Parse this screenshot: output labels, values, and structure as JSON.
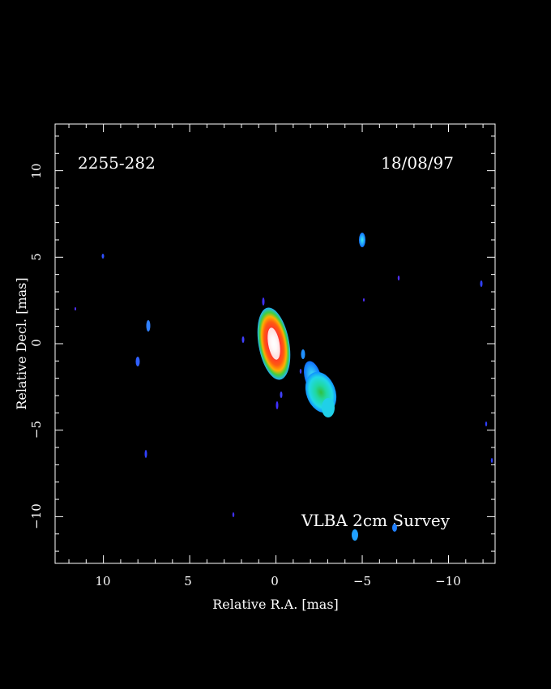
{
  "source_name": "2255-282",
  "observation_date": "18/08/97",
  "survey_label": "VLBA 2cm Survey",
  "x_axis": {
    "label": "Relative R.A. [mas]",
    "ticks": [
      "10",
      "5",
      "0",
      "−5",
      "−10"
    ],
    "range_mas": [
      12.8,
      -12.7
    ],
    "reversed": true
  },
  "y_axis": {
    "label": "Relative Decl. [mas]",
    "ticks": [
      "10",
      "5",
      "0",
      "−5",
      "−10"
    ],
    "range_mas": [
      -12.7,
      12.7
    ]
  },
  "colors": {
    "background": "#000000",
    "frame": "#ffffff",
    "core_peak": "#fff0f0",
    "core_mid": "#ff2020",
    "core_outer": "#ffa000",
    "core_edge": "#30d030",
    "jet_component": "#20e0d0",
    "faint_component": "#4040ff"
  },
  "components": [
    {
      "name": "core",
      "ra": 0.0,
      "dec": 0.2,
      "peak": "red-white"
    },
    {
      "name": "jet",
      "ra": -2.8,
      "dec": -2.8,
      "peak": "green"
    }
  ]
}
